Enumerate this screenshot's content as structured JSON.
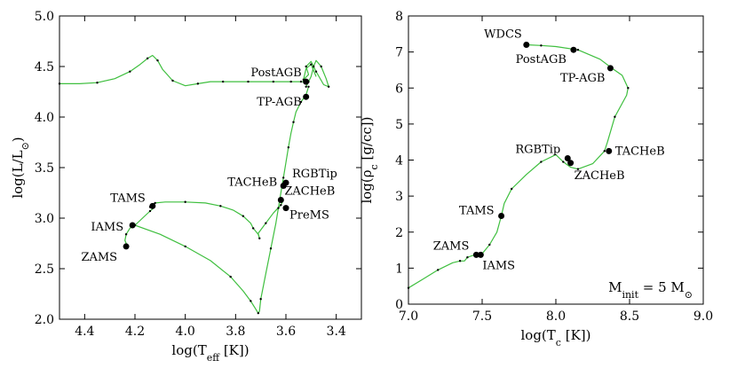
{
  "chart_data": [
    {
      "type": "line",
      "xlabel_main": "log(T",
      "xlabel_sub": "eff",
      "xlabel_end": " [K])",
      "ylabel_main": "log(L/L",
      "ylabel_sub": "⊙",
      "ylabel_end": ")",
      "xlim": [
        4.5,
        3.3
      ],
      "ylim": [
        2.0,
        5.0
      ],
      "xticks": [
        4.4,
        4.2,
        4.0,
        3.8,
        3.6,
        3.4
      ],
      "xtick_labels": [
        "4.4",
        "4.2",
        "4.0",
        "3.8",
        "3.6",
        "3.4"
      ],
      "yticks": [
        2.0,
        2.5,
        3.0,
        3.5,
        4.0,
        4.5,
        5.0
      ],
      "ytick_labels": [
        "2.0",
        "2.5",
        "3.0",
        "3.5",
        "4.0",
        "4.5",
        "5.0"
      ],
      "line_color": "#3fbf3f",
      "series": [
        {
          "x": [
            4.5,
            4.42,
            4.35,
            4.28,
            4.22,
            4.18,
            4.15,
            4.13,
            4.11,
            4.09,
            4.05,
            4.0,
            3.95,
            3.9,
            3.85,
            3.8,
            3.75,
            3.7,
            3.65,
            3.6,
            3.58,
            3.56,
            3.54,
            3.52,
            3.51
          ],
          "y": [
            4.33,
            4.33,
            4.34,
            4.38,
            4.45,
            4.52,
            4.58,
            4.61,
            4.56,
            4.47,
            4.36,
            4.31,
            4.33,
            4.35,
            4.35,
            4.35,
            4.35,
            4.35,
            4.35,
            4.35,
            4.35,
            4.35,
            4.35,
            4.35,
            4.35
          ]
        },
        {
          "x": [
            4.23,
            4.24,
            4.235,
            4.22,
            4.2,
            4.17,
            4.14,
            4.13,
            4.14,
            4.13,
            4.12,
            4.08,
            4.0,
            3.92,
            3.86,
            3.81,
            3.77,
            3.74,
            3.73,
            3.71,
            3.705,
            3.71,
            3.68,
            3.65,
            3.62,
            3.61
          ],
          "y": [
            2.72,
            2.78,
            2.84,
            2.9,
            2.93,
            3.0,
            3.07,
            3.09,
            3.11,
            3.13,
            3.15,
            3.16,
            3.16,
            3.15,
            3.12,
            3.08,
            3.02,
            2.95,
            2.9,
            2.84,
            2.8,
            2.85,
            2.95,
            3.05,
            3.13,
            3.18
          ]
        },
        {
          "x": [
            4.2,
            4.1,
            4.0,
            3.9,
            3.82,
            3.77,
            3.74,
            3.72,
            3.71,
            3.705,
            3.7,
            3.68,
            3.66,
            3.64,
            3.63,
            3.62,
            3.61,
            3.6,
            3.59,
            3.58,
            3.57,
            3.56,
            3.54,
            3.52,
            3.51
          ],
          "y": [
            2.93,
            2.84,
            2.72,
            2.58,
            2.42,
            2.28,
            2.18,
            2.1,
            2.06,
            2.08,
            2.2,
            2.45,
            2.7,
            2.95,
            3.1,
            3.25,
            3.4,
            3.55,
            3.7,
            3.84,
            3.95,
            4.05,
            4.15,
            4.22,
            4.3
          ]
        },
        {
          "x": [
            3.52,
            3.5,
            3.49,
            3.48,
            3.46,
            3.44,
            3.43,
            3.45,
            3.48,
            3.5,
            3.52,
            3.51,
            3.53,
            3.52,
            3.5,
            3.48
          ],
          "y": [
            4.3,
            4.4,
            4.5,
            4.56,
            4.5,
            4.38,
            4.3,
            4.32,
            4.45,
            4.55,
            4.5,
            4.42,
            4.37,
            4.48,
            4.52,
            4.4
          ]
        }
      ],
      "annotations": [
        {
          "label": "PostAGB",
          "x": 3.52,
          "y": 4.35
        },
        {
          "label": "TP-AGB",
          "x": 3.52,
          "y": 4.2
        },
        {
          "label": "RGBTip",
          "x": 3.6,
          "y": 3.35
        },
        {
          "label": "TACHeB",
          "x": 3.61,
          "y": 3.32
        },
        {
          "label": "ZACHeB",
          "x": 3.62,
          "y": 3.18
        },
        {
          "label": "PreMS",
          "x": 3.6,
          "y": 3.1
        },
        {
          "label": "TAMS",
          "x": 4.13,
          "y": 3.12
        },
        {
          "label": "IAMS",
          "x": 4.21,
          "y": 2.93
        },
        {
          "label": "ZAMS",
          "x": 4.235,
          "y": 2.72
        }
      ]
    },
    {
      "type": "line",
      "xlabel_main": "log(T",
      "xlabel_sub": "c",
      "xlabel_end": " [K])",
      "ylabel_main": "log(ρ",
      "ylabel_sub": "c",
      "ylabel_end": " [g/cc])",
      "xlim": [
        7.0,
        9.0
      ],
      "ylim": [
        0,
        8
      ],
      "xticks": [
        7.0,
        7.5,
        8.0,
        8.5,
        9.0
      ],
      "xtick_labels": [
        "7.0",
        "7.5",
        "8.0",
        "8.5",
        "9.0"
      ],
      "yticks": [
        0,
        1,
        2,
        3,
        4,
        5,
        6,
        7,
        8
      ],
      "ytick_labels": [
        "0",
        "1",
        "2",
        "3",
        "4",
        "5",
        "6",
        "7",
        "8"
      ],
      "line_color": "#3fbf3f",
      "series": [
        {
          "x": [
            7.0,
            7.1,
            7.2,
            7.3,
            7.35,
            7.38,
            7.4,
            7.45,
            7.47,
            7.5,
            7.55,
            7.6,
            7.63,
            7.65,
            7.7,
            7.8,
            7.9,
            8.0,
            8.05,
            8.1,
            8.15,
            8.25,
            8.33,
            8.35,
            8.4,
            8.48,
            8.49,
            8.45,
            8.38,
            8.3,
            8.15,
            8.0,
            7.9,
            7.8
          ],
          "y": [
            0.45,
            0.7,
            0.95,
            1.15,
            1.2,
            1.2,
            1.3,
            1.37,
            1.38,
            1.4,
            1.65,
            2.0,
            2.45,
            2.8,
            3.2,
            3.6,
            3.95,
            4.15,
            3.95,
            3.8,
            3.75,
            3.9,
            4.25,
            4.5,
            5.2,
            5.8,
            6.0,
            6.35,
            6.55,
            6.8,
            7.06,
            7.15,
            7.18,
            7.2
          ]
        }
      ],
      "annotations": [
        {
          "label": "WDCS",
          "x": 7.8,
          "y": 7.2
        },
        {
          "label": "PostAGB",
          "x": 8.12,
          "y": 7.06
        },
        {
          "label": "TP-AGB",
          "x": 8.37,
          "y": 6.55
        },
        {
          "label": "RGBTip",
          "x": 8.08,
          "y": 4.05
        },
        {
          "label": "TACHeB",
          "x": 8.36,
          "y": 4.25
        },
        {
          "label": "ZACHeB",
          "x": 8.1,
          "y": 3.92
        },
        {
          "label": "TAMS",
          "x": 7.63,
          "y": 2.45
        },
        {
          "label": "ZAMS",
          "x": 7.46,
          "y": 1.37
        },
        {
          "label": "IAMS",
          "x": 7.49,
          "y": 1.37
        }
      ],
      "legend_text": "M",
      "legend_sub": "init",
      "legend_value": " = 5 M",
      "legend_sub2": "⊙"
    }
  ]
}
